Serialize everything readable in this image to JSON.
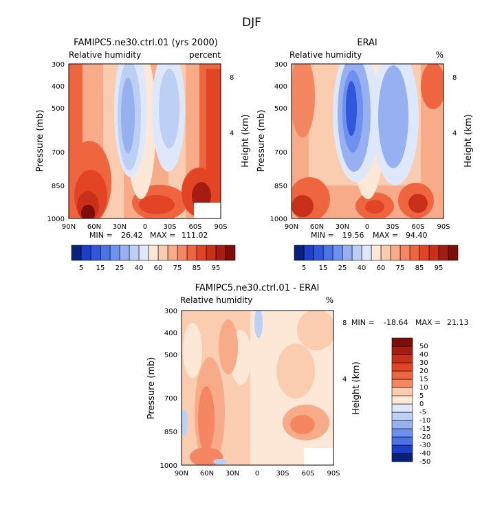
{
  "figure_title": "DJF",
  "chart_data": [
    {
      "type": "heatmap",
      "title": "FAMIPC5.ne30.ctrl.01 (yrs 2000)",
      "subtitle_left": "Relative humidity",
      "subtitle_right": "percent",
      "xlabel": "",
      "ylabel": "Pressure (mb)",
      "ylabel_right": "Height (km)",
      "x_ticks": [
        "90N",
        "60N",
        "30N",
        "0",
        "30S",
        "60S",
        "90S"
      ],
      "y_ticks": [
        "300",
        "400",
        "500",
        "700",
        "850",
        "1000"
      ],
      "y_ticks_right": [
        "8",
        "4"
      ],
      "stats": {
        "min_label": "MIN =",
        "min": "26.42",
        "max_label": "MAX =",
        "max": "111.02"
      },
      "colorbar": {
        "orientation": "horizontal",
        "labels": [
          "5",
          "15",
          "25",
          "40",
          "60",
          "75",
          "85",
          "95"
        ],
        "colors": [
          "#08207a",
          "#1d3ec8",
          "#3057dc",
          "#4a73e6",
          "#6e90ee",
          "#97b0f2",
          "#bcd0f6",
          "#dfe8fa",
          "#fde8d8",
          "#fbcdb0",
          "#f8ab88",
          "#f48762",
          "#ef6540",
          "#e34426",
          "#c8301a",
          "#a51d12",
          "#7d0d0b"
        ]
      }
    },
    {
      "type": "heatmap",
      "title": "ERAI",
      "subtitle_left": "Relative humidity",
      "subtitle_right": "%",
      "xlabel": "",
      "ylabel": "Pressure (mb)",
      "ylabel_right": "Height (km)",
      "x_ticks": [
        "90N",
        "60N",
        "30N",
        "0",
        "30S",
        "60S",
        "90S"
      ],
      "y_ticks": [
        "300",
        "400",
        "500",
        "700",
        "850",
        "1000"
      ],
      "y_ticks_right": [
        "8",
        "4"
      ],
      "stats": {
        "min_label": "MIN =",
        "min": "19.56",
        "max_label": "MAX =",
        "max": "94.40"
      },
      "colorbar": {
        "orientation": "horizontal",
        "labels": [
          "5",
          "15",
          "25",
          "40",
          "60",
          "75",
          "85",
          "95"
        ],
        "colors": [
          "#08207a",
          "#1d3ec8",
          "#3057dc",
          "#4a73e6",
          "#6e90ee",
          "#97b0f2",
          "#bcd0f6",
          "#dfe8fa",
          "#fde8d8",
          "#fbcdb0",
          "#f8ab88",
          "#f48762",
          "#ef6540",
          "#e34426",
          "#c8301a",
          "#a51d12",
          "#7d0d0b"
        ]
      }
    },
    {
      "type": "heatmap",
      "title": "FAMIPC5.ne30.ctrl.01 - ERAI",
      "subtitle_left": "Relative humidity",
      "subtitle_right": "%",
      "xlabel": "",
      "ylabel": "Pressure (mb)",
      "ylabel_right": "Height (km)",
      "x_ticks": [
        "90N",
        "60N",
        "30N",
        "0",
        "30S",
        "60S",
        "90S"
      ],
      "y_ticks": [
        "300",
        "400",
        "500",
        "700",
        "850",
        "1000"
      ],
      "y_ticks_right": [
        "8",
        "4"
      ],
      "stats": {
        "min_label": "MIN =",
        "min": "-18.64",
        "max_label": "MAX =",
        "max": "21.13"
      },
      "colorbar": {
        "orientation": "vertical",
        "labels": [
          "50",
          "40",
          "30",
          "20",
          "15",
          "10",
          "5",
          "0",
          "-5",
          "-10",
          "-15",
          "-20",
          "-30",
          "-40",
          "-50"
        ],
        "colors": [
          "#7d0d0b",
          "#a51d12",
          "#c8301a",
          "#e34426",
          "#ef6540",
          "#f48762",
          "#fbcdb0",
          "#fde8d8",
          "#e0e8fa",
          "#bcd0f6",
          "#97b0f2",
          "#6e90ee",
          "#4a73e6",
          "#1d3ec8",
          "#08207a"
        ]
      }
    }
  ]
}
